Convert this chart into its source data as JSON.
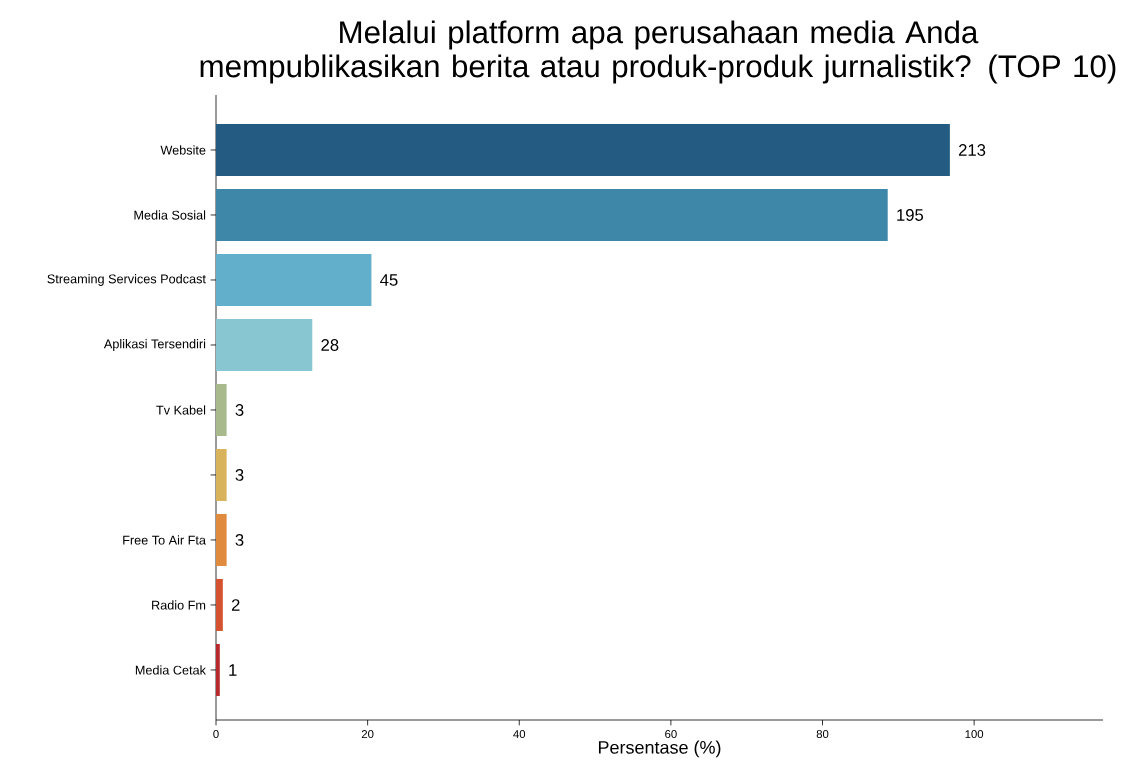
{
  "chart_data": {
    "type": "bar",
    "orientation": "horizontal",
    "title": "Melalui platform apa perusahaan media Anda mempublikasikan berita atau produk-produk jurnalistik? (TOP 10)",
    "xlabel": "Persentase (%)",
    "categories": [
      "Website",
      "Media Sosial",
      "Streaming Services Podcast",
      "Aplikasi Tersendiri",
      "Tv Kabel",
      null,
      "Free To Air Fta",
      "Radio Fm",
      "Media Cetak"
    ],
    "values": [
      96.8,
      88.6,
      20.5,
      12.7,
      1.4,
      1.4,
      1.4,
      0.9,
      0.5
    ],
    "colors": [
      "#245b82",
      "#3f87a8",
      "#62afcb",
      "#88c7d1",
      "#a8b98c",
      "#d9b35c",
      "#e08a3e",
      "#d4522f",
      "#b8282d"
    ],
    "xlim": [
      0,
      117
    ],
    "xticks": [
      0,
      20,
      40,
      60,
      80,
      100
    ],
    "annotations": [
      {
        "text": "213",
        "x": 96.8,
        "y": "Website"
      },
      {
        "text": "195",
        "x": 88.6,
        "y": "Media Sosial"
      },
      {
        "text": "45",
        "x": 20.5,
        "y": "Streaming Services Podcast"
      },
      {
        "text": "28",
        "x": 12.7,
        "y": "Aplikasi Tersendiri"
      },
      {
        "text": "3",
        "x": 1.4,
        "y": "Tv Kabel"
      },
      {
        "text": "3",
        "x": 1.4
      },
      {
        "text": "3",
        "x": 1.4,
        "y": "Free To Air Fta"
      },
      {
        "text": "2",
        "x": 0.9,
        "y": "Radio Fm"
      },
      {
        "text": "1",
        "x": 0.5,
        "y": "Media Cetak"
      }
    ]
  }
}
